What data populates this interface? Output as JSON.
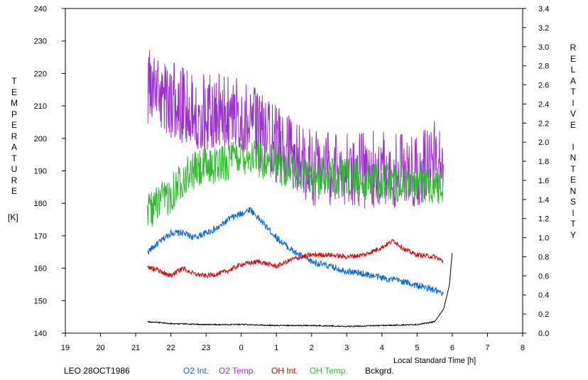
{
  "chart_data": {
    "type": "line",
    "xlabel": "Local Standard Time [h]",
    "x_ticks": [
      "19",
      "20",
      "21",
      "22",
      "23",
      "0",
      "1",
      "2",
      "3",
      "4",
      "5",
      "6",
      "7",
      "8"
    ],
    "xlim_hours_since_19": [
      0,
      13
    ],
    "left_axis": {
      "label": "TEMPERATURE",
      "unit": "[K]",
      "ylim": [
        140,
        240
      ],
      "ticks": [
        140,
        150,
        160,
        170,
        180,
        190,
        200,
        210,
        220,
        230,
        240
      ]
    },
    "right_axis": {
      "label": "RELATIVE INTENSITY",
      "ylim": [
        0.0,
        3.4
      ],
      "ticks": [
        "0.0",
        "0.2",
        "0.4",
        "0.6",
        "0.8",
        "1.0",
        "1.2",
        "1.4",
        "1.6",
        "1.8",
        "2.0",
        "2.2",
        "2.4",
        "2.6",
        "2.8",
        "3.0",
        "3.2",
        "3.4"
      ]
    },
    "legend_position": "bottom",
    "title_note": "LEO 28OCT1986",
    "series": [
      {
        "name": "O2 Int.",
        "axis": "right",
        "color": "#0066dd",
        "x": [
          "21:20",
          "21:40",
          "22:00",
          "22:20",
          "22:40",
          "23:00",
          "23:20",
          "23:40",
          "0:00",
          "0:15",
          "0:30",
          "1:00",
          "1:30",
          "2:00",
          "2:30",
          "3:00",
          "3:30",
          "4:00",
          "4:30",
          "5:00",
          "5:30",
          "5:45"
        ],
        "values": [
          0.85,
          0.95,
          1.05,
          1.05,
          1.0,
          1.05,
          1.1,
          1.2,
          1.25,
          1.3,
          1.2,
          1.0,
          0.85,
          0.75,
          0.7,
          0.65,
          0.62,
          0.58,
          0.55,
          0.5,
          0.45,
          0.4
        ]
      },
      {
        "name": "O2 Temp.",
        "axis": "left",
        "color": "#9933cc",
        "x": [
          "21:20",
          "21:40",
          "22:00",
          "22:20",
          "22:40",
          "23:00",
          "23:20",
          "23:40",
          "0:00",
          "0:30",
          "1:00",
          "1:30",
          "2:00",
          "2:30",
          "3:00",
          "3:30",
          "4:00",
          "4:30",
          "5:00",
          "5:30",
          "5:45"
        ],
        "values": [
          216,
          214,
          212,
          210,
          209,
          208,
          208,
          208,
          207,
          203,
          198,
          194,
          191,
          191,
          190,
          190,
          191,
          190,
          191,
          194,
          196
        ]
      },
      {
        "name": "OH Int.",
        "axis": "right",
        "color": "#dd0000",
        "x": [
          "21:20",
          "21:40",
          "22:00",
          "22:20",
          "22:40",
          "23:00",
          "23:20",
          "23:40",
          "0:00",
          "0:30",
          "1:00",
          "1:30",
          "2:00",
          "2:30",
          "3:00",
          "3:30",
          "4:00",
          "4:20",
          "4:40",
          "5:00",
          "5:30",
          "5:45"
        ],
        "values": [
          0.7,
          0.65,
          0.6,
          0.68,
          0.62,
          0.6,
          0.62,
          0.66,
          0.72,
          0.75,
          0.7,
          0.78,
          0.82,
          0.82,
          0.8,
          0.82,
          0.9,
          0.97,
          0.87,
          0.82,
          0.8,
          0.75
        ]
      },
      {
        "name": "OH Temp.",
        "axis": "left",
        "color": "#33bb33",
        "x": [
          "21:20",
          "21:40",
          "22:00",
          "22:20",
          "22:40",
          "23:00",
          "23:20",
          "23:40",
          "0:00",
          "0:30",
          "1:00",
          "1:30",
          "2:00",
          "2:30",
          "3:00",
          "3:30",
          "4:00",
          "4:30",
          "5:00",
          "5:30",
          "5:45"
        ],
        "values": [
          178,
          180,
          183,
          188,
          190,
          191,
          192,
          193,
          195,
          194,
          192,
          190,
          189,
          188,
          188,
          187,
          187,
          186,
          186,
          186,
          185
        ]
      },
      {
        "name": "Bckgrd.",
        "axis": "right",
        "color": "#000000",
        "x": [
          "21:20",
          "22:00",
          "23:00",
          "0:00",
          "1:00",
          "2:00",
          "3:00",
          "4:00",
          "5:00",
          "5:30",
          "5:45",
          "5:55",
          "6:00"
        ],
        "values": [
          0.12,
          0.1,
          0.09,
          0.09,
          0.08,
          0.08,
          0.07,
          0.08,
          0.09,
          0.12,
          0.25,
          0.5,
          0.85
        ]
      }
    ]
  }
}
